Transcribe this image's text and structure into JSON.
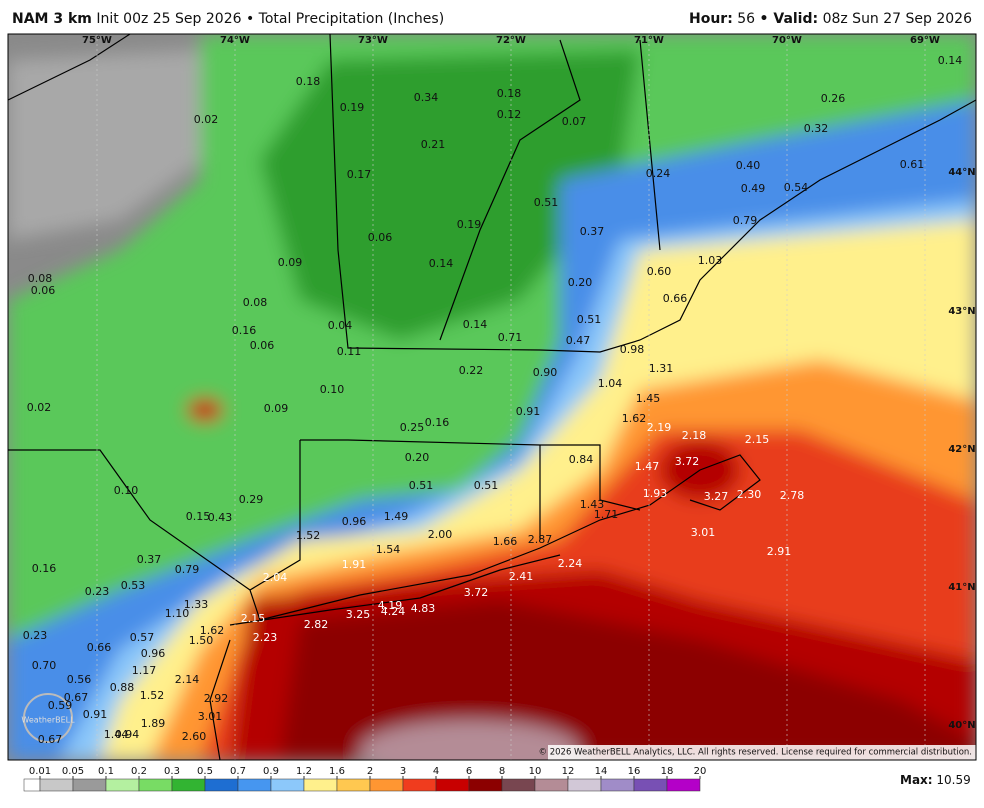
{
  "header": {
    "model": "NAM 3 km",
    "init": "Init 00z 25 Sep 2026 • Total Precipitation (Inches)",
    "hour_label": "Hour:",
    "hour": "56",
    "valid_label": "• Valid:",
    "valid": "08z Sun 27 Sep 2026"
  },
  "map": {
    "longitudes": [
      "75°W",
      "74°W",
      "73°W",
      "72°W",
      "71°W",
      "70°W",
      "69°W"
    ],
    "latitudes": [
      "44°N",
      "43°N",
      "42°N",
      "41°N",
      "40°N"
    ],
    "labels": [
      "0.18",
      "0.19",
      "0.34",
      "0.18",
      "0.12",
      "0.07",
      "0.02",
      "0.21",
      "0.17",
      "0.51",
      "0.37",
      "0.24",
      "0.40",
      "0.49",
      "0.54",
      "0.26",
      "0.32",
      "0.14",
      "0.61",
      "0.79",
      "1.03",
      "0.19",
      "0.06",
      "0.09",
      "0.14",
      "0.20",
      "0.60",
      "0.66",
      "0.08",
      "0.06",
      "0.08",
      "0.16",
      "0.06",
      "0.04",
      "0.14",
      "0.71",
      "0.51",
      "0.47",
      "0.98",
      "0.11",
      "1.31",
      "0.22",
      "0.90",
      "1.04",
      "0.10",
      "1.45",
      "0.02",
      "0.09",
      "0.91",
      "1.62",
      "2.19",
      "0.25",
      "0.16",
      "2.18",
      "2.15",
      "0.20",
      "0.84",
      "3.72",
      "1.47",
      "0.51",
      "0.51",
      "0.10",
      "1.93",
      "3.27",
      "2.30",
      "2.78",
      "0.29",
      "1.49",
      "0.15",
      "0.43",
      "0.96",
      "1.43",
      "1.71",
      "3.01",
      "1.52",
      "2.00",
      "1.66",
      "2.87",
      "1.54",
      "2.91",
      "0.37",
      "2.24",
      "0.16",
      "0.79",
      "1.91",
      "2.04",
      "2.41",
      "0.53",
      "0.23",
      "3.72",
      "1.33",
      "4.19",
      "4.83",
      "4.24",
      "3.25",
      "1.10",
      "2.15",
      "2.82",
      "0.23",
      "0.57",
      "1.62",
      "2.23",
      "1.50",
      "0.66",
      "0.96",
      "0.70",
      "1.17",
      "0.56",
      "2.14",
      "0.88",
      "0.67",
      "1.52",
      "2.92",
      "0.59",
      "0.91",
      "3.01",
      "1.89",
      "1.44",
      "0.94",
      "2.60",
      "0.67"
    ],
    "watermark": "WeatherBELL",
    "copyright": "© 2026 WeatherBELL Analytics, LLC. All rights reserved. License required for commercial distribution."
  },
  "colorbar": {
    "ticks": [
      0.01,
      0.05,
      0.1,
      0.2,
      0.3,
      0.5,
      0.7,
      0.9,
      1.2,
      1.6,
      2,
      3,
      4,
      6,
      8,
      10,
      12,
      14,
      16,
      18,
      20
    ],
    "colors": [
      "#ffffff",
      "#c8c8c8",
      "#9a9a9a",
      "#b4f0a0",
      "#78dc64",
      "#32b432",
      "#1e6ed2",
      "#4696f0",
      "#8cc8fa",
      "#fff08c",
      "#ffc850",
      "#ff9632",
      "#f03c1e",
      "#c80000",
      "#8c0000",
      "#784650",
      "#b48c96",
      "#d2c8d7",
      "#a08cc8",
      "#7850b4",
      "#b400c8"
    ],
    "max_label": "Max:",
    "max": "10.59"
  }
}
